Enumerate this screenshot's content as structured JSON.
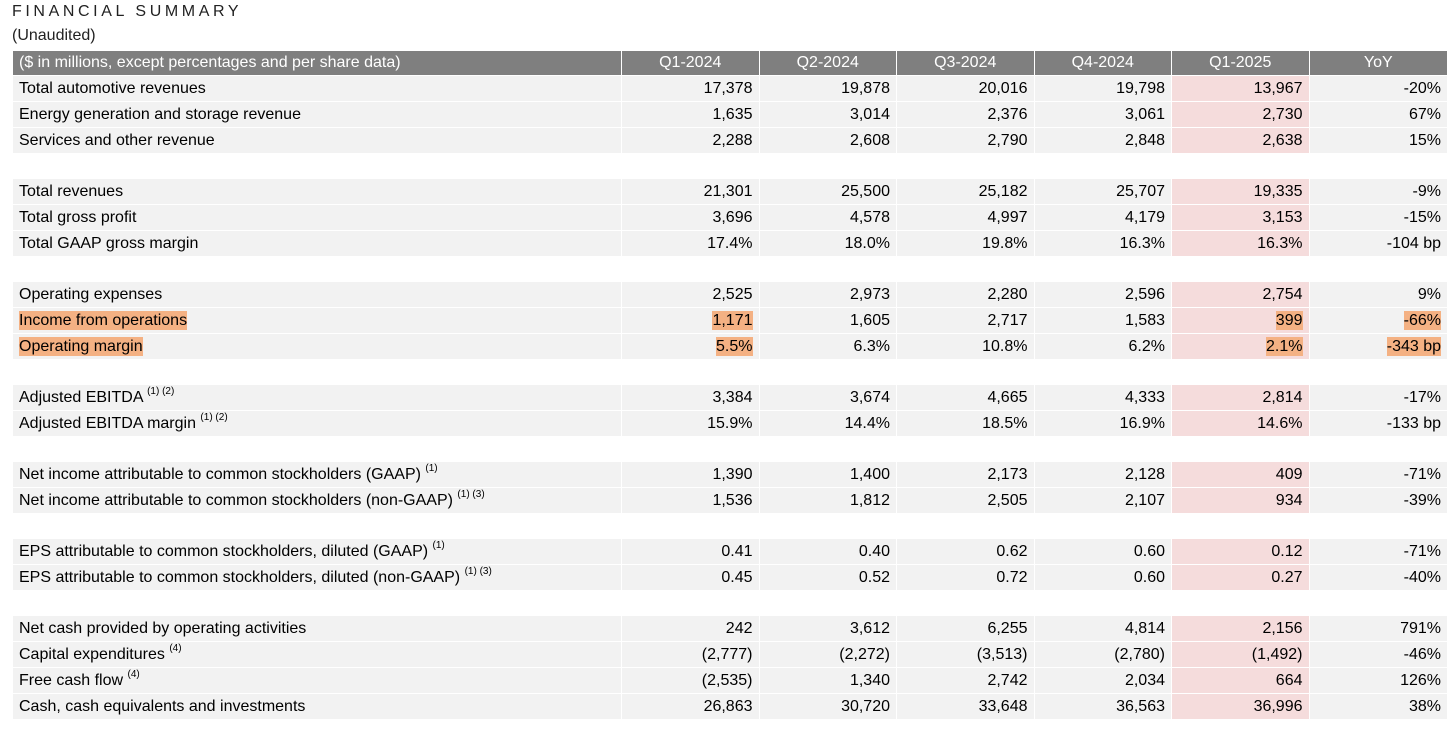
{
  "title": "FINANCIAL SUMMARY",
  "subtitle": "(Unaudited)",
  "header": {
    "label": "($ in millions, except percentages and per share data)",
    "columns": [
      "Q1-2024",
      "Q2-2024",
      "Q3-2024",
      "Q4-2024",
      "Q1-2025",
      "YoY"
    ]
  },
  "colors": {
    "header_bg": "#7f7f7f",
    "row_bg": "#f2f2f2",
    "q1_2025_bg": "#f5dcdc",
    "highlight": "#f4b183"
  },
  "groups": [
    {
      "rows": [
        {
          "label": "Total automotive revenues",
          "sup": "",
          "values": [
            "17,378",
            "19,878",
            "20,016",
            "19,798",
            "13,967",
            "-20%"
          ]
        },
        {
          "label": "Energy generation and storage revenue",
          "sup": "",
          "values": [
            "1,635",
            "3,014",
            "2,376",
            "3,061",
            "2,730",
            "67%"
          ]
        },
        {
          "label": "Services and other revenue",
          "sup": "",
          "values": [
            "2,288",
            "2,608",
            "2,790",
            "2,848",
            "2,638",
            "15%"
          ]
        }
      ]
    },
    {
      "rows": [
        {
          "label": "Total revenues",
          "sup": "",
          "values": [
            "21,301",
            "25,500",
            "25,182",
            "25,707",
            "19,335",
            "-9%"
          ]
        },
        {
          "label": "Total gross profit",
          "sup": "",
          "values": [
            "3,696",
            "4,578",
            "4,997",
            "4,179",
            "3,153",
            "-15%"
          ]
        },
        {
          "label": "Total GAAP gross margin",
          "sup": "",
          "values": [
            "17.4%",
            "18.0%",
            "19.8%",
            "16.3%",
            "16.3%",
            "-104 bp"
          ]
        }
      ]
    },
    {
      "rows": [
        {
          "label": "Operating expenses",
          "sup": "",
          "values": [
            "2,525",
            "2,973",
            "2,280",
            "2,596",
            "2,754",
            "9%"
          ]
        },
        {
          "label": "Income from operations",
          "sup": "",
          "highlight": true,
          "values": [
            "1,171",
            "1,605",
            "2,717",
            "1,583",
            "399",
            "-66%"
          ]
        },
        {
          "label": "Operating margin",
          "sup": "",
          "highlight": true,
          "values": [
            "5.5%",
            "6.3%",
            "10.8%",
            "6.2%",
            "2.1%",
            "-343 bp"
          ]
        }
      ]
    },
    {
      "rows": [
        {
          "label": "Adjusted EBITDA",
          "sup": "(1) (2)",
          "values": [
            "3,384",
            "3,674",
            "4,665",
            "4,333",
            "2,814",
            "-17%"
          ]
        },
        {
          "label": "Adjusted EBITDA margin",
          "sup": "(1) (2)",
          "values": [
            "15.9%",
            "14.4%",
            "18.5%",
            "16.9%",
            "14.6%",
            "-133 bp"
          ]
        }
      ]
    },
    {
      "rows": [
        {
          "label": "Net income attributable to common stockholders (GAAP)",
          "sup": "(1)",
          "values": [
            "1,390",
            "1,400",
            "2,173",
            "2,128",
            "409",
            "-71%"
          ]
        },
        {
          "label": "Net income attributable to common stockholders (non-GAAP)",
          "sup": "(1) (3)",
          "values": [
            "1,536",
            "1,812",
            "2,505",
            "2,107",
            "934",
            "-39%"
          ]
        }
      ]
    },
    {
      "rows": [
        {
          "label": "EPS attributable to common stockholders, diluted (GAAP)",
          "sup": "(1)",
          "values": [
            "0.41",
            "0.40",
            "0.62",
            "0.60",
            "0.12",
            "-71%"
          ]
        },
        {
          "label": "EPS attributable to common stockholders, diluted (non-GAAP)",
          "sup": "(1) (3)",
          "values": [
            "0.45",
            "0.52",
            "0.72",
            "0.60",
            "0.27",
            "-40%"
          ]
        }
      ]
    },
    {
      "rows": [
        {
          "label": "Net cash provided by operating activities",
          "sup": "",
          "values": [
            "242",
            "3,612",
            "6,255",
            "4,814",
            "2,156",
            "791%"
          ]
        },
        {
          "label": "Capital expenditures",
          "sup": "(4)",
          "values": [
            "(2,777)",
            "(2,272)",
            "(3,513)",
            "(2,780)",
            "(1,492)",
            "-46%"
          ]
        },
        {
          "label": "Free cash flow",
          "sup": "(4)",
          "values": [
            "(2,535)",
            "1,340",
            "2,742",
            "2,034",
            "664",
            "126%"
          ]
        },
        {
          "label": "Cash, cash equivalents and investments",
          "sup": "",
          "values": [
            "26,863",
            "30,720",
            "33,648",
            "36,563",
            "36,996",
            "38%"
          ]
        }
      ]
    }
  ]
}
